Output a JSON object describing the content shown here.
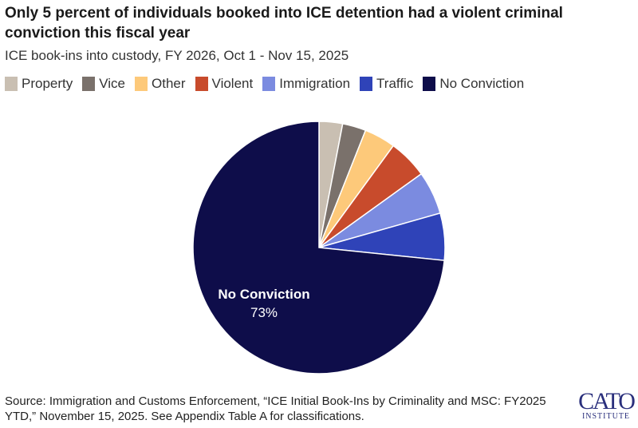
{
  "chart_data": {
    "type": "pie",
    "title": "Only 5 percent of individuals booked into ICE detention had a violent criminal conviction this fiscal year",
    "subtitle": "ICE book-ins into custody, FY 2026, Oct 1 - Nov 15, 2025",
    "legend_placement": "top",
    "slices": [
      {
        "label": "Property",
        "value": 3,
        "color": "#c9bfb2"
      },
      {
        "label": "Vice",
        "value": 3,
        "color": "#7a716b"
      },
      {
        "label": "Other",
        "value": 4,
        "color": "#fdc97a"
      },
      {
        "label": "Violent",
        "value": 5,
        "color": "#c84b2c"
      },
      {
        "label": "Immigration",
        "value": 5.5,
        "color": "#7b8be0"
      },
      {
        "label": "Traffic",
        "value": 6,
        "color": "#2f43b8"
      },
      {
        "label": "No Conviction",
        "value": 73,
        "color": "#0e0d4a"
      }
    ],
    "data_labels": [
      {
        "label": "No Conviction",
        "value_text": "73%"
      }
    ]
  },
  "source": "Source: Immigration and Customs Enforcement, “ICE Initial Book-Ins by Criminality and MSC: FY2025 YTD,” November 15, 2025. See Appendix Table A for classifications.",
  "logo": {
    "line1": "CATO",
    "line2": "INSTITUTE"
  }
}
